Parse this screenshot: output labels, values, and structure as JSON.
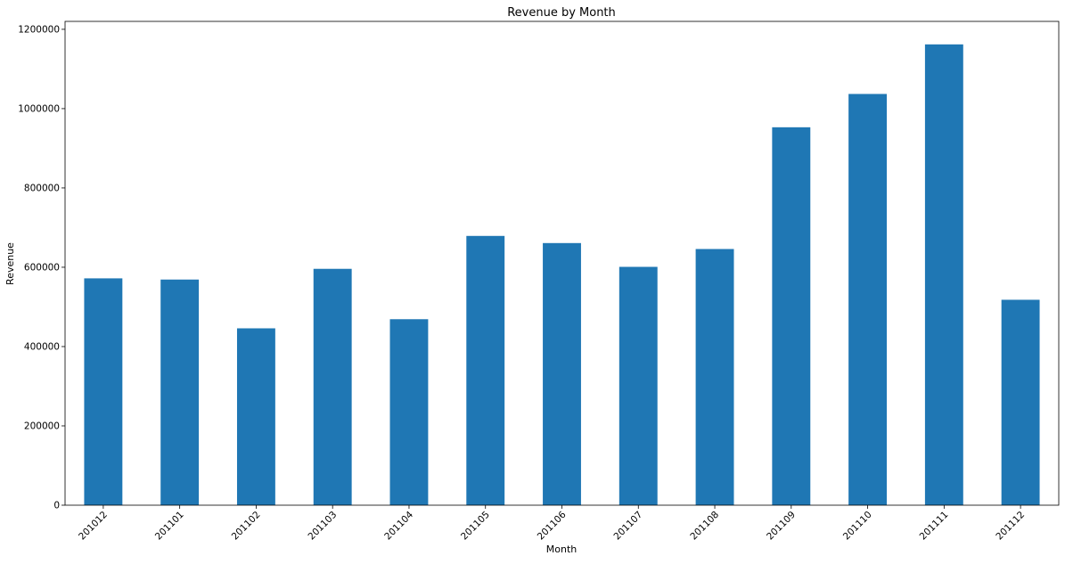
{
  "chart_data": {
    "type": "bar",
    "title": "Revenue by Month",
    "xlabel": "Month",
    "ylabel": "Revenue",
    "categories": [
      "201012",
      "201101",
      "201102",
      "201103",
      "201104",
      "201105",
      "201106",
      "201107",
      "201108",
      "201109",
      "201110",
      "201111",
      "201112"
    ],
    "values": [
      572000,
      569000,
      446000,
      596000,
      469000,
      679000,
      661000,
      601000,
      646000,
      953000,
      1037000,
      1162000,
      518000
    ],
    "ylim": [
      0,
      1220000
    ],
    "yticks": [
      0,
      200000,
      400000,
      600000,
      800000,
      1000000,
      1200000
    ],
    "ytick_labels": [
      "0",
      "200000",
      "400000",
      "600000",
      "800000",
      "1000000",
      "1200000"
    ],
    "grid": false,
    "color": "#1f77b4"
  }
}
